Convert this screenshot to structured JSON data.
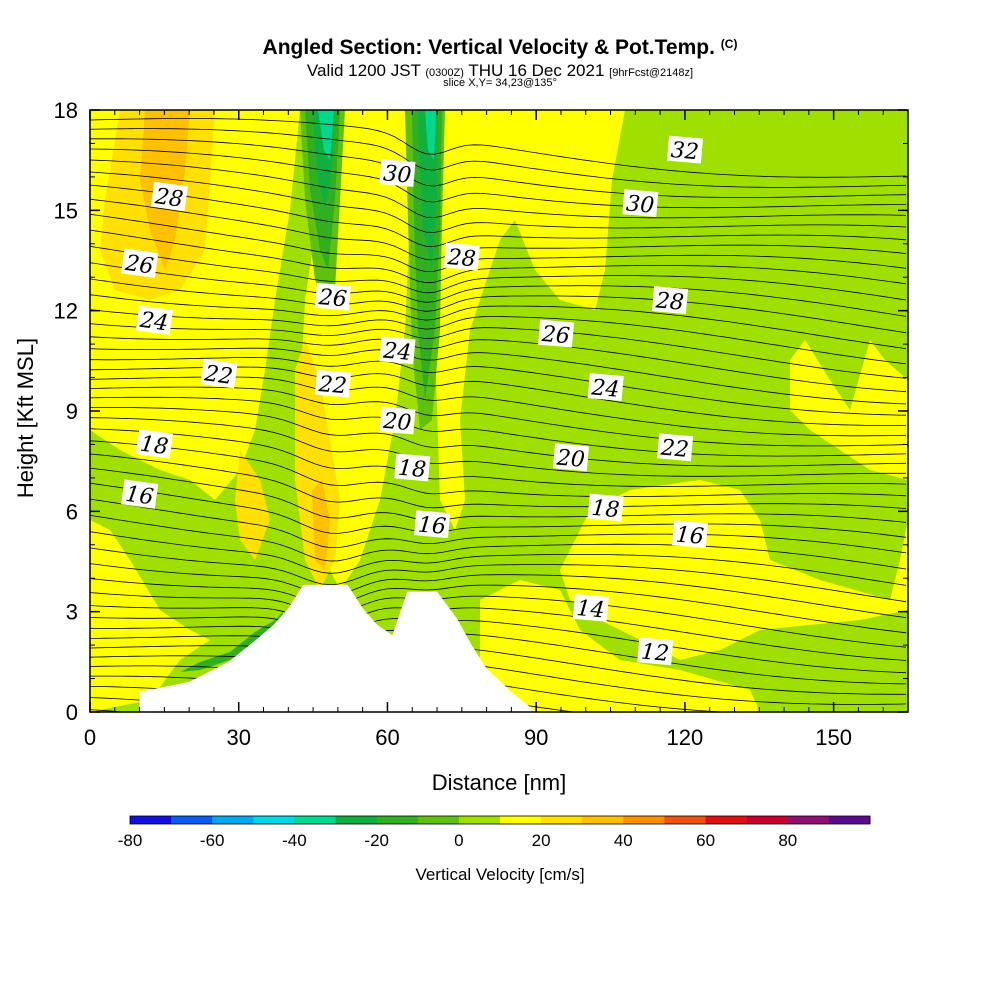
{
  "header": {
    "title": "Angled Section: Vertical Velocity & Pot.Temp.",
    "title_mark": "(C)",
    "valid_prefix": "Valid 1200 JST",
    "valid_utc": "(0300Z)",
    "valid_date": "THU 16 Dec 2021",
    "forecast": "[9hrFcst@2148z]",
    "slice": "slice X,Y= 34,23@135°"
  },
  "chart_data": {
    "type": "heatmap",
    "xlabel": "Distance [nm]",
    "ylabel": "Height [Kft MSL]",
    "xlim": [
      0,
      165
    ],
    "ylim": [
      0,
      18
    ],
    "x_ticks": [
      0,
      30,
      60,
      90,
      120,
      150
    ],
    "y_ticks": [
      0,
      3,
      6,
      9,
      12,
      15,
      18
    ],
    "colorbar": {
      "label": "Vertical Velocity [cm/s]",
      "tick_labels": [
        "-80",
        "-60",
        "-40",
        "-20",
        "0",
        "20",
        "40",
        "60",
        "80"
      ],
      "levels": [
        -80,
        -70,
        -60,
        -50,
        -40,
        -30,
        -20,
        -10,
        0,
        10,
        20,
        30,
        40,
        50,
        60,
        70,
        80,
        90
      ],
      "colors": [
        "#1010e0",
        "#0a5cf0",
        "#06a8f0",
        "#00d8e8",
        "#00d890",
        "#10b040",
        "#30b020",
        "#60c010",
        "#a0e000",
        "#ffff00",
        "#ffe000",
        "#ffc000",
        "#ff9000",
        "#f05010",
        "#e01010",
        "#c80030",
        "#901070",
        "#5a0a90"
      ]
    },
    "terrain_profile": [
      [
        10,
        0
      ],
      [
        10,
        0.6
      ],
      [
        20,
        0.9
      ],
      [
        28,
        1.5
      ],
      [
        33,
        2.1
      ],
      [
        37,
        2.6
      ],
      [
        40,
        3.1
      ],
      [
        43,
        3.8
      ],
      [
        52,
        3.8
      ],
      [
        55,
        3.1
      ],
      [
        58,
        2.6
      ],
      [
        61,
        2.3
      ],
      [
        64,
        3.6
      ],
      [
        70,
        3.6
      ],
      [
        74,
        2.8
      ],
      [
        77,
        2.0
      ],
      [
        80,
        1.3
      ],
      [
        85,
        0.6
      ],
      [
        90,
        0
      ]
    ],
    "contour_labels": [
      {
        "text": "32",
        "x": 120,
        "y": 16.8
      },
      {
        "text": "30",
        "x": 62,
        "y": 16.1
      },
      {
        "text": "30",
        "x": 111,
        "y": 15.2
      },
      {
        "text": "28",
        "x": 16,
        "y": 15.4
      },
      {
        "text": "28",
        "x": 75,
        "y": 13.6
      },
      {
        "text": "28",
        "x": 117,
        "y": 12.3
      },
      {
        "text": "26",
        "x": 10,
        "y": 13.4
      },
      {
        "text": "26",
        "x": 49,
        "y": 12.4
      },
      {
        "text": "26",
        "x": 94,
        "y": 11.3
      },
      {
        "text": "24",
        "x": 13,
        "y": 11.7
      },
      {
        "text": "24",
        "x": 62,
        "y": 10.8
      },
      {
        "text": "24",
        "x": 104,
        "y": 9.7
      },
      {
        "text": "22",
        "x": 26,
        "y": 10.1
      },
      {
        "text": "22",
        "x": 49,
        "y": 9.8
      },
      {
        "text": "22",
        "x": 118,
        "y": 7.9
      },
      {
        "text": "20",
        "x": 62,
        "y": 8.7
      },
      {
        "text": "20",
        "x": 97,
        "y": 7.6
      },
      {
        "text": "18",
        "x": 13,
        "y": 8.0
      },
      {
        "text": "18",
        "x": 65,
        "y": 7.3
      },
      {
        "text": "18",
        "x": 104,
        "y": 6.1
      },
      {
        "text": "16",
        "x": 10,
        "y": 6.5
      },
      {
        "text": "16",
        "x": 69,
        "y": 5.6
      },
      {
        "text": "16",
        "x": 121,
        "y": 5.3
      },
      {
        "text": "14",
        "x": 101,
        "y": 3.1
      },
      {
        "text": "12",
        "x": 114,
        "y": 1.8
      }
    ]
  }
}
